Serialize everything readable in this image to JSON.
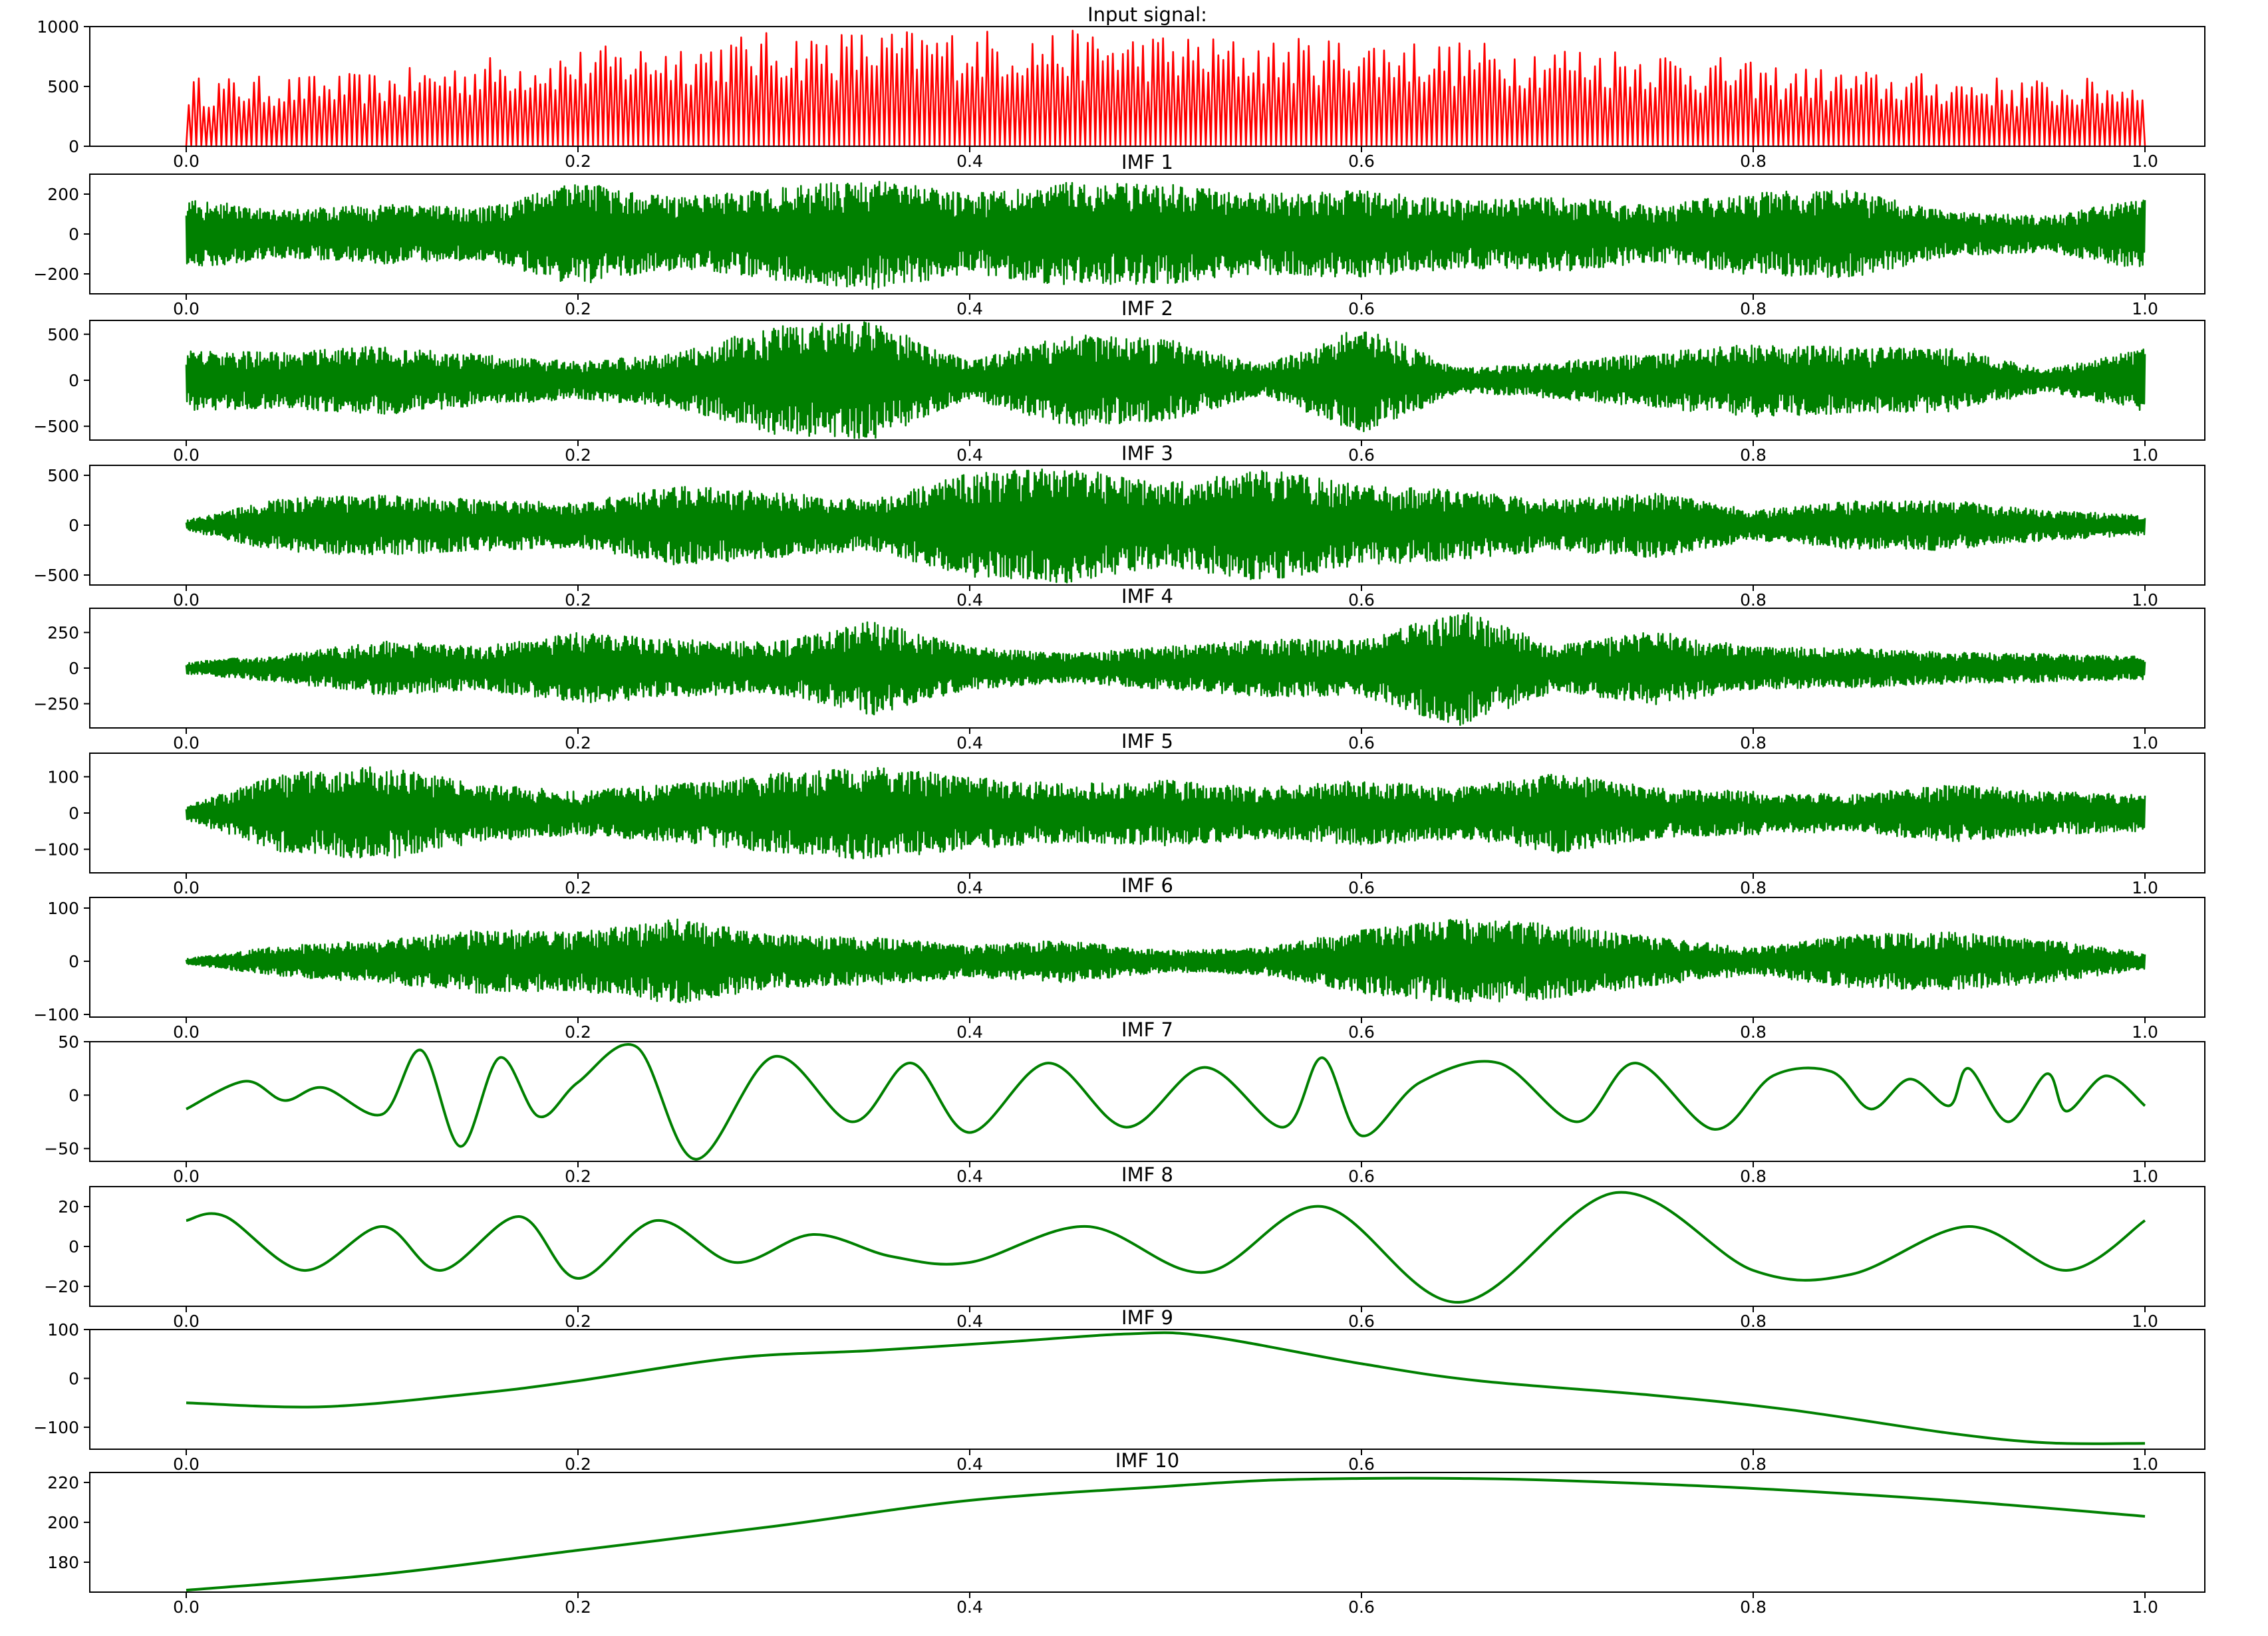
{
  "chart_data": [
    {
      "type": "line",
      "title": "Input signal:",
      "color": "#ff0000",
      "style": "spikes",
      "ylim": [
        0,
        1000
      ],
      "yticks": [
        0,
        500,
        1000
      ],
      "xlim": [
        0,
        1
      ],
      "xticks": [
        0.0,
        0.2,
        0.4,
        0.6,
        0.8,
        1.0
      ],
      "x": [
        0.0,
        0.05,
        0.1,
        0.15,
        0.2,
        0.25,
        0.3,
        0.35,
        0.4,
        0.45,
        0.5,
        0.55,
        0.6,
        0.65,
        0.7,
        0.75,
        0.8,
        0.85,
        0.9,
        0.95,
        1.0
      ],
      "values": [
        580,
        590,
        620,
        750,
        820,
        900,
        960,
        980,
        990,
        970,
        950,
        900,
        930,
        880,
        860,
        830,
        700,
        640,
        600,
        560,
        580
      ]
    },
    {
      "type": "line",
      "title": "IMF 1",
      "color": "#008000",
      "style": "oscillation",
      "ylim": [
        -300,
        300
      ],
      "yticks": [
        -200,
        0,
        200
      ],
      "xlim": [
        0,
        1
      ],
      "xticks": [
        0.0,
        0.2,
        0.4,
        0.6,
        0.8,
        1.0
      ],
      "x": [
        0.0,
        0.05,
        0.1,
        0.15,
        0.2,
        0.25,
        0.3,
        0.35,
        0.4,
        0.45,
        0.5,
        0.55,
        0.6,
        0.65,
        0.7,
        0.75,
        0.8,
        0.85,
        0.9,
        0.95,
        1.0
      ],
      "values": [
        180,
        120,
        150,
        130,
        260,
        180,
        230,
        280,
        200,
        260,
        250,
        200,
        220,
        170,
        190,
        140,
        210,
        220,
        110,
        90,
        180
      ]
    },
    {
      "type": "line",
      "title": "IMF 2",
      "color": "#008000",
      "style": "oscillation",
      "ylim": [
        -650,
        650
      ],
      "yticks": [
        -500,
        0,
        500
      ],
      "xlim": [
        0,
        1
      ],
      "xticks": [
        0.0,
        0.2,
        0.4,
        0.6,
        0.8,
        1.0
      ],
      "x": [
        0.0,
        0.05,
        0.1,
        0.15,
        0.2,
        0.25,
        0.3,
        0.35,
        0.4,
        0.45,
        0.5,
        0.55,
        0.6,
        0.65,
        0.7,
        0.75,
        0.8,
        0.85,
        0.9,
        0.95,
        1.0
      ],
      "values": [
        330,
        300,
        380,
        280,
        200,
        300,
        590,
        650,
        200,
        500,
        450,
        160,
        580,
        130,
        200,
        300,
        400,
        360,
        350,
        120,
        340
      ]
    },
    {
      "type": "line",
      "title": "IMF 3",
      "color": "#008000",
      "style": "oscillation",
      "ylim": [
        -600,
        600
      ],
      "yticks": [
        -500,
        0,
        500
      ],
      "xlim": [
        0,
        1
      ],
      "xticks": [
        0.0,
        0.2,
        0.4,
        0.6,
        0.8,
        1.0
      ],
      "x": [
        0.0,
        0.05,
        0.1,
        0.15,
        0.2,
        0.25,
        0.3,
        0.35,
        0.4,
        0.45,
        0.5,
        0.55,
        0.6,
        0.65,
        0.7,
        0.75,
        0.8,
        0.85,
        0.9,
        0.95,
        1.0
      ],
      "values": [
        50,
        280,
        300,
        260,
        220,
        400,
        330,
        250,
        520,
        580,
        420,
        560,
        400,
        350,
        250,
        330,
        150,
        240,
        250,
        150,
        100
      ]
    },
    {
      "type": "line",
      "title": "IMF 4",
      "color": "#008000",
      "style": "oscillation",
      "ylim": [
        -420,
        420
      ],
      "yticks": [
        -250,
        0,
        250
      ],
      "xlim": [
        0,
        1
      ],
      "xticks": [
        0.0,
        0.2,
        0.4,
        0.6,
        0.8,
        1.0
      ],
      "x": [
        0.0,
        0.05,
        0.1,
        0.15,
        0.2,
        0.25,
        0.3,
        0.35,
        0.4,
        0.45,
        0.5,
        0.55,
        0.6,
        0.65,
        0.7,
        0.75,
        0.8,
        0.85,
        0.9,
        0.95,
        1.0
      ],
      "values": [
        40,
        100,
        190,
        150,
        250,
        200,
        180,
        330,
        150,
        100,
        150,
        200,
        200,
        410,
        160,
        260,
        150,
        140,
        110,
        100,
        80
      ]
    },
    {
      "type": "line",
      "title": "IMF 5",
      "color": "#008000",
      "style": "oscillation",
      "ylim": [
        -165,
        165
      ],
      "yticks": [
        -100,
        0,
        100
      ],
      "xlim": [
        0,
        1
      ],
      "xticks": [
        0.0,
        0.2,
        0.4,
        0.6,
        0.8,
        1.0
      ],
      "x": [
        0.0,
        0.05,
        0.1,
        0.15,
        0.2,
        0.25,
        0.3,
        0.35,
        0.4,
        0.45,
        0.5,
        0.55,
        0.6,
        0.65,
        0.7,
        0.75,
        0.8,
        0.85,
        0.9,
        0.95,
        1.0
      ],
      "values": [
        20,
        110,
        130,
        80,
        60,
        80,
        110,
        130,
        100,
        80,
        90,
        70,
        90,
        70,
        110,
        70,
        60,
        50,
        80,
        60,
        50
      ]
    },
    {
      "type": "line",
      "title": "IMF 6",
      "color": "#008000",
      "style": "oscillation",
      "ylim": [
        -105,
        120
      ],
      "yticks": [
        -100,
        0,
        100
      ],
      "xlim": [
        0,
        1
      ],
      "xticks": [
        0.0,
        0.2,
        0.4,
        0.6,
        0.8,
        1.0
      ],
      "x": [
        0.0,
        0.05,
        0.1,
        0.15,
        0.2,
        0.25,
        0.3,
        0.35,
        0.4,
        0.45,
        0.5,
        0.55,
        0.6,
        0.65,
        0.7,
        0.75,
        0.8,
        0.85,
        0.9,
        0.95,
        1.0
      ],
      "values": [
        5,
        30,
        40,
        60,
        55,
        80,
        50,
        45,
        30,
        40,
        20,
        25,
        60,
        80,
        70,
        45,
        25,
        50,
        55,
        40,
        15
      ]
    },
    {
      "type": "line",
      "title": "IMF 7",
      "color": "#008000",
      "ylim": [
        -62,
        50
      ],
      "yticks": [
        -50,
        0,
        50
      ],
      "xlim": [
        0,
        1
      ],
      "xticks": [
        0.0,
        0.2,
        0.4,
        0.6,
        0.8,
        1.0
      ],
      "x": [
        0.0,
        0.03,
        0.05,
        0.07,
        0.1,
        0.12,
        0.14,
        0.16,
        0.18,
        0.2,
        0.23,
        0.26,
        0.3,
        0.34,
        0.37,
        0.4,
        0.44,
        0.48,
        0.52,
        0.56,
        0.58,
        0.6,
        0.63,
        0.67,
        0.71,
        0.74,
        0.78,
        0.81,
        0.84,
        0.86,
        0.88,
        0.9,
        0.91,
        0.93,
        0.95,
        0.96,
        0.98,
        1.0
      ],
      "values": [
        -13,
        13,
        -5,
        7,
        -18,
        42,
        -48,
        35,
        -20,
        12,
        45,
        -60,
        36,
        -25,
        30,
        -35,
        30,
        -30,
        26,
        -30,
        35,
        -38,
        12,
        30,
        -25,
        30,
        -32,
        18,
        22,
        -13,
        15,
        -10,
        25,
        -25,
        20,
        -15,
        18,
        -10
      ]
    },
    {
      "type": "line",
      "title": "IMF 8",
      "color": "#008000",
      "ylim": [
        -30,
        30
      ],
      "yticks": [
        -20,
        0,
        20
      ],
      "xlim": [
        0,
        1
      ],
      "xticks": [
        0.0,
        0.2,
        0.4,
        0.6,
        0.8,
        1.0
      ],
      "x": [
        0.0,
        0.02,
        0.06,
        0.1,
        0.13,
        0.17,
        0.2,
        0.24,
        0.28,
        0.32,
        0.36,
        0.4,
        0.46,
        0.52,
        0.58,
        0.65,
        0.73,
        0.8,
        0.85,
        0.91,
        0.96,
        1.0
      ],
      "values": [
        13,
        15,
        -12,
        10,
        -12,
        15,
        -16,
        13,
        -8,
        6,
        -5,
        -8,
        10,
        -13,
        20,
        -28,
        27,
        -12,
        -14,
        10,
        -12,
        13
      ]
    },
    {
      "type": "line",
      "title": "IMF 9",
      "color": "#008000",
      "ylim": [
        -145,
        100
      ],
      "yticks": [
        -100,
        0,
        100
      ],
      "xlim": [
        0,
        1
      ],
      "xticks": [
        0.0,
        0.2,
        0.4,
        0.6,
        0.8,
        1.0
      ],
      "x": [
        0.0,
        0.07,
        0.15,
        0.2,
        0.28,
        0.35,
        0.42,
        0.48,
        0.52,
        0.6,
        0.66,
        0.75,
        0.82,
        0.9,
        0.95,
        1.0
      ],
      "values": [
        -50,
        -58,
        -30,
        -5,
        42,
        57,
        75,
        91,
        87,
        30,
        -5,
        -35,
        -65,
        -112,
        -132,
        -133
      ]
    },
    {
      "type": "line",
      "title": "IMF 10",
      "color": "#008000",
      "ylim": [
        165,
        225
      ],
      "yticks": [
        180,
        200,
        220
      ],
      "xlim": [
        0,
        1
      ],
      "xticks": [
        0.0,
        0.2,
        0.4,
        0.6,
        0.8,
        1.0
      ],
      "x": [
        0.0,
        0.1,
        0.2,
        0.3,
        0.4,
        0.5,
        0.55,
        0.6,
        0.65,
        0.7,
        0.8,
        0.9,
        1.0
      ],
      "values": [
        166,
        174,
        186,
        198,
        211,
        218,
        221,
        222,
        222,
        221,
        217,
        211,
        203
      ]
    }
  ]
}
